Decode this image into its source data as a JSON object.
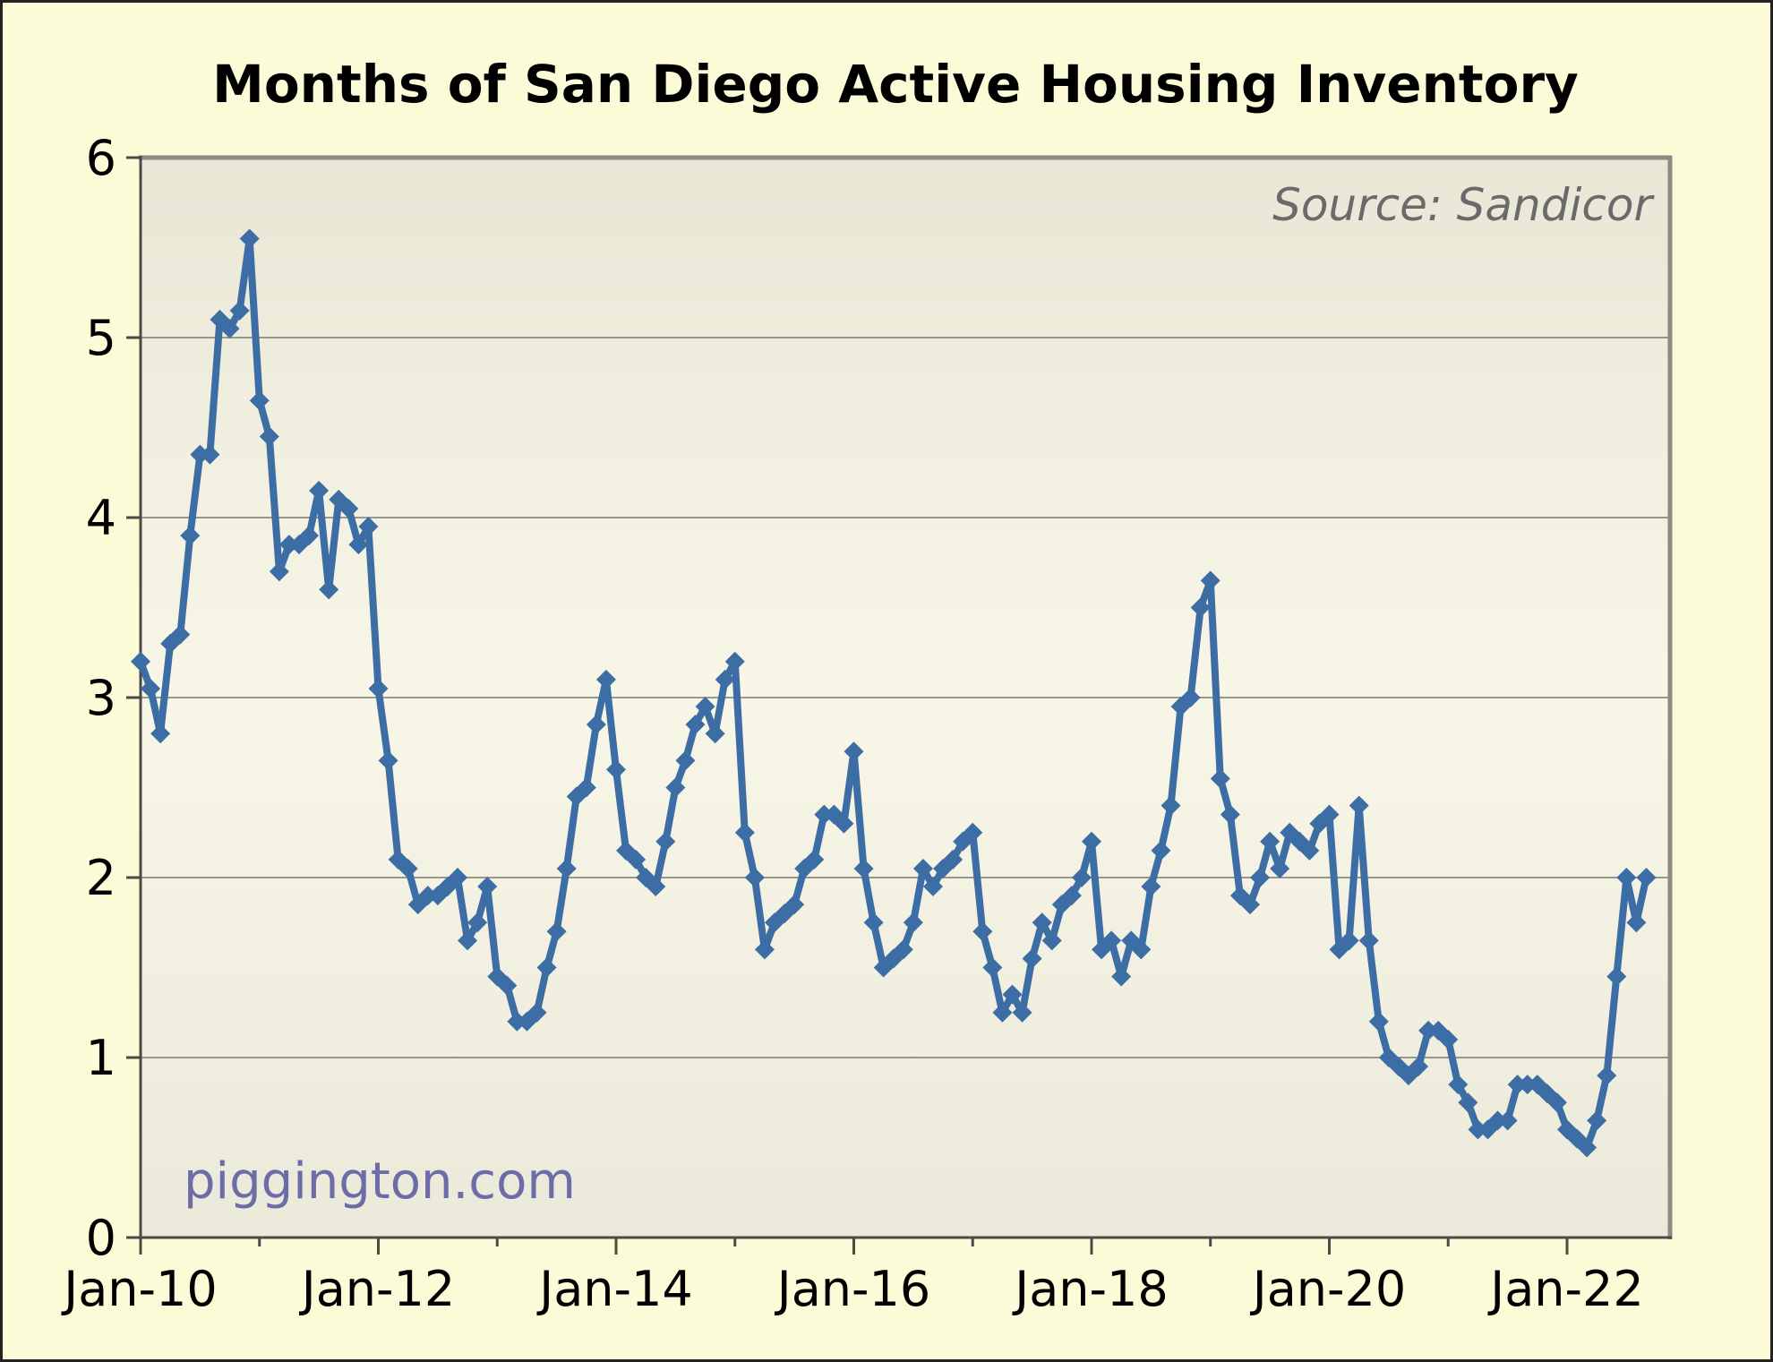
{
  "chart_data": {
    "type": "line",
    "title": "Months of San Diego Active Housing Inventory",
    "source_note": "Source: Sandicor",
    "watermark": "piggington.com",
    "legend": "none",
    "grid": "horizontal",
    "marker": "diamond",
    "ylim": [
      0,
      6
    ],
    "y_ticks": [
      0,
      1,
      2,
      3,
      4,
      5,
      6
    ],
    "x_start_month": "Jan-2010",
    "x_end_month": "Sep-2022",
    "x_tick_labels": [
      "Jan-10",
      "Jan-12",
      "Jan-14",
      "Jan-16",
      "Jan-18",
      "Jan-20",
      "Jan-22"
    ],
    "x_major_tick_months": [
      0,
      24,
      48,
      72,
      96,
      120,
      144
    ],
    "x_minor_tick_months": [
      12,
      36,
      60,
      84,
      108,
      132
    ],
    "series": [
      {
        "name": "Months of active housing inventory",
        "monthly_values": [
          3.2,
          3.05,
          2.8,
          3.3,
          3.35,
          3.9,
          4.35,
          4.35,
          5.1,
          5.05,
          5.15,
          5.55,
          4.65,
          4.45,
          3.7,
          3.85,
          3.85,
          3.9,
          4.15,
          3.6,
          4.1,
          4.05,
          3.85,
          3.95,
          3.05,
          2.65,
          2.1,
          2.05,
          1.85,
          1.9,
          1.9,
          1.95,
          2.0,
          1.65,
          1.75,
          1.95,
          1.45,
          1.4,
          1.2,
          1.2,
          1.25,
          1.5,
          1.7,
          2.05,
          2.45,
          2.5,
          2.85,
          3.1,
          2.6,
          2.15,
          2.1,
          2.0,
          1.95,
          2.2,
          2.5,
          2.65,
          2.85,
          2.95,
          2.8,
          3.1,
          3.2,
          2.25,
          2.0,
          1.6,
          1.75,
          1.8,
          1.85,
          2.05,
          2.1,
          2.35,
          2.35,
          2.3,
          2.7,
          2.05,
          1.75,
          1.5,
          1.55,
          1.6,
          1.75,
          2.05,
          1.95,
          2.05,
          2.1,
          2.2,
          2.25,
          1.7,
          1.5,
          1.25,
          1.35,
          1.25,
          1.55,
          1.75,
          1.65,
          1.85,
          1.9,
          2.0,
          2.2,
          1.6,
          1.65,
          1.45,
          1.65,
          1.6,
          1.95,
          2.15,
          2.4,
          2.95,
          3.0,
          3.5,
          3.65,
          2.55,
          2.35,
          1.9,
          1.85,
          2.0,
          2.2,
          2.05,
          2.25,
          2.2,
          2.15,
          2.3,
          2.35,
          1.6,
          1.65,
          2.4,
          1.65,
          1.2,
          1.0,
          0.95,
          0.9,
          0.95,
          1.15,
          1.15,
          1.1,
          0.85,
          0.75,
          0.6,
          0.6,
          0.65,
          0.65,
          0.85,
          0.85,
          0.85,
          0.8,
          0.75,
          0.6,
          0.55,
          0.5,
          0.65,
          0.9,
          1.45,
          2.0,
          1.75,
          2.0
        ]
      }
    ],
    "colors": {
      "background": "#fbfbd7",
      "frame": "#222222",
      "plot_gradient_top": "#e9e6d6",
      "plot_gradient_mid": "#f8f7e7",
      "plot_gradient_bottom": "#ebe9d9",
      "gridline": "#8a8a82",
      "axis": "#4b4b45",
      "plot_border": "#8b8b83",
      "line": "#3d6da5",
      "title_color": "#000000",
      "source_color": "#6a6a6a",
      "watermark_color": "#6c6ca8"
    }
  }
}
